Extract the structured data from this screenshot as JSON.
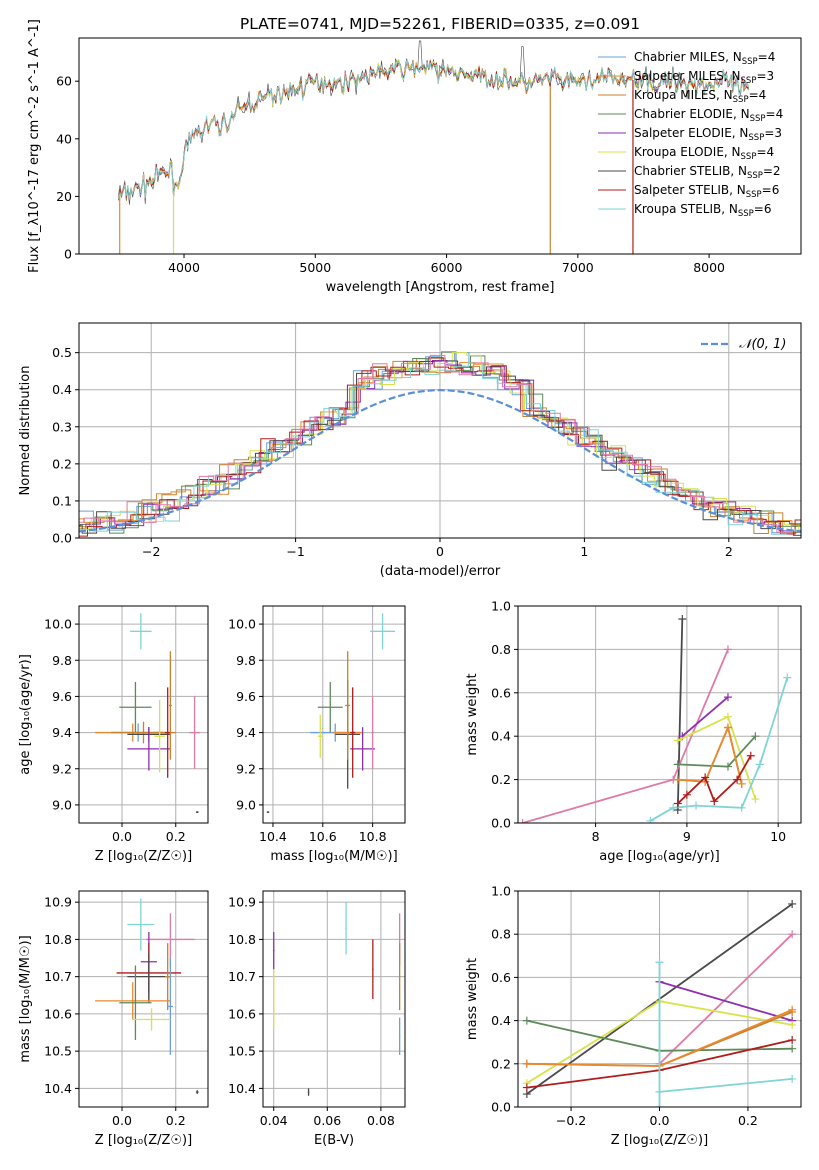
{
  "figure": {
    "title": "PLATE=0741, MJD=52261, FIBERID=0335, z=0.091"
  },
  "colors": {
    "Chabrier MILES": "#6aa0e0",
    "Salpeter MILES": "#e9882e",
    "Kroupa MILES": "#c8822f",
    "Chabrier ELODIE": "#5e8a5a",
    "Salpeter ELODIE": "#8e2fb0",
    "Kroupa ELODIE": "#d8e24a",
    "Chabrier STELIB": "#4a4a4a",
    "Salpeter STELIB": "#b01c1c",
    "Kroupa STELIB": "#7fd4d6",
    "gaussian": "#5b8fd6",
    "pink": "#e07aa8"
  },
  "chart_data": [
    {
      "id": "spectrum",
      "type": "line",
      "title": "PLATE=0741, MJD=52261, FIBERID=0335, z=0.091",
      "xlabel": "wavelength [Angstrom, rest frame]",
      "ylabel": "Flux [f_λ10^-17 erg cm^-2 s^-1 A^-1]",
      "xlim": [
        3200,
        8700
      ],
      "ylim": [
        0,
        75
      ],
      "xticks": [
        "4000",
        "5000",
        "6000",
        "7000",
        "8000"
      ],
      "yticks": [
        "0",
        "20",
        "40",
        "60"
      ],
      "grid": false,
      "legend_position": "top-right",
      "legend": [
        {
          "label": "Chabrier MILES, N",
          "sub": "SSP",
          "tail": "=4"
        },
        {
          "label": "Salpeter MILES, N",
          "sub": "SSP",
          "tail": "=3"
        },
        {
          "label": "Kroupa MILES, N",
          "sub": "SSP",
          "tail": "=4"
        },
        {
          "label": "Chabrier ELODIE, N",
          "sub": "SSP",
          "tail": "=4"
        },
        {
          "label": "Salpeter ELODIE, N",
          "sub": "SSP",
          "tail": "=3"
        },
        {
          "label": "Kroupa ELODIE, N",
          "sub": "SSP",
          "tail": "=4"
        },
        {
          "label": "Chabrier STELIB, N",
          "sub": "SSP",
          "tail": "=2"
        },
        {
          "label": "Salpeter STELIB, N",
          "sub": "SSP",
          "tail": "=6"
        },
        {
          "label": "Kroupa STELIB, N",
          "sub": "SSP",
          "tail": "=6"
        }
      ],
      "continuum": [
        [
          3500,
          20
        ],
        [
          3600,
          22
        ],
        [
          3700,
          24
        ],
        [
          3800,
          27
        ],
        [
          3900,
          29
        ],
        [
          3950,
          22
        ],
        [
          4000,
          35
        ],
        [
          4100,
          42
        ],
        [
          4200,
          45
        ],
        [
          4300,
          45
        ],
        [
          4400,
          49
        ],
        [
          4500,
          52
        ],
        [
          4600,
          54
        ],
        [
          4700,
          55
        ],
        [
          4800,
          57
        ],
        [
          4900,
          58
        ],
        [
          5000,
          60
        ],
        [
          5100,
          60
        ],
        [
          5200,
          59
        ],
        [
          5300,
          61
        ],
        [
          5400,
          62
        ],
        [
          5500,
          63
        ],
        [
          5600,
          64
        ],
        [
          5700,
          64
        ],
        [
          5800,
          65
        ],
        [
          5900,
          64
        ],
        [
          6000,
          63
        ],
        [
          6100,
          63
        ],
        [
          6200,
          62
        ],
        [
          6300,
          61
        ],
        [
          6400,
          61
        ],
        [
          6500,
          60
        ],
        [
          6600,
          59
        ],
        [
          6700,
          60
        ],
        [
          6800,
          61
        ],
        [
          6900,
          60
        ],
        [
          7000,
          60
        ],
        [
          7100,
          60
        ],
        [
          7200,
          61
        ],
        [
          7300,
          61
        ],
        [
          7400,
          60
        ],
        [
          7500,
          62
        ],
        [
          7600,
          58
        ],
        [
          7700,
          60
        ],
        [
          7800,
          60
        ],
        [
          7900,
          59
        ],
        [
          8000,
          59
        ],
        [
          8100,
          60
        ],
        [
          8200,
          58
        ],
        [
          8300,
          57
        ]
      ]
    },
    {
      "id": "residual-histogram",
      "type": "line",
      "xlabel": "(data-model)/error",
      "ylabel": "Normed distribution",
      "xlim": [
        -2.5,
        2.5
      ],
      "ylim": [
        0,
        0.58
      ],
      "xticks": [
        "−2",
        "−1",
        "0",
        "1",
        "2"
      ],
      "yticks": [
        "0.0",
        "0.1",
        "0.2",
        "0.3",
        "0.4",
        "0.5"
      ],
      "grid": true,
      "legend_position": "top-right",
      "legend": [
        "𝒩(0, 1)"
      ],
      "gaussian": {
        "mean": 0,
        "sigma": 1
      }
    },
    {
      "id": "age-vs-Z",
      "type": "scatter",
      "xlabel": "Z [log₁₀(Z/Z☉)]",
      "ylabel": "age  [log₁₀(age/yr)]",
      "xlim": [
        -0.16,
        0.32
      ],
      "ylim": [
        8.9,
        10.1
      ],
      "xticks": [
        "0.0",
        "0.2"
      ],
      "yticks": [
        "9.0",
        "9.2",
        "9.4",
        "9.6",
        "9.8",
        "10.0"
      ],
      "grid": true,
      "points": [
        {
          "series": "Kroupa STELIB",
          "x": 0.07,
          "y": 9.96,
          "xerr": 0.04,
          "yerr": 0.1
        },
        {
          "series": "Chabrier ELODIE",
          "x": 0.05,
          "y": 9.54,
          "xerr": 0.06,
          "yerr": 0.14
        },
        {
          "series": "Salpeter MILES",
          "x": 0.04,
          "y": 9.4,
          "xerr": 0.14,
          "yerr": 0.05
        },
        {
          "series": "Chabrier MILES",
          "x": 0.06,
          "y": 9.4,
          "xerr": 0.1,
          "yerr": 0.05
        },
        {
          "series": "Kroupa MILES",
          "x": 0.08,
          "y": 9.4,
          "xerr": 0.12,
          "yerr": 0.06
        },
        {
          "series": "Chabrier STELIB",
          "x": 0.1,
          "y": 9.39,
          "xerr": 0.08,
          "yerr": 0.04
        },
        {
          "series": "Salpeter ELODIE",
          "x": 0.1,
          "y": 9.31,
          "xerr": 0.08,
          "yerr": 0.12
        },
        {
          "series": "Kroupa ELODIE",
          "x": 0.14,
          "y": 9.38,
          "xerr": 0.02,
          "yerr": 0.2
        },
        {
          "series": "Salpeter STELIB",
          "x": 0.17,
          "y": 9.4,
          "xerr": 0.01,
          "yerr": 0.25
        },
        {
          "series": "Kroupa MILES",
          "x": 0.18,
          "y": 9.55,
          "xerr": 0.005,
          "yerr": 0.3
        },
        {
          "series": "pink",
          "x": 0.27,
          "y": 9.4,
          "xerr": 0.02,
          "yerr": 0.2
        },
        {
          "series": "Chabrier STELIB",
          "x": 0.28,
          "y": 8.96,
          "xerr": 0.005,
          "yerr": 0.005
        }
      ]
    },
    {
      "id": "age-vs-mass",
      "type": "scatter",
      "xlabel": "mass [log₁₀(M/M☉)]",
      "ylabel": "",
      "xlim": [
        10.36,
        10.93
      ],
      "ylim": [
        8.9,
        10.1
      ],
      "xticks": [
        "10.4",
        "10.6",
        "10.8"
      ],
      "yticks": [
        "9.0",
        "9.2",
        "9.4",
        "9.6",
        "9.8",
        "10.0"
      ],
      "grid": true,
      "points": [
        {
          "series": "Kroupa STELIB",
          "x": 10.84,
          "y": 9.96,
          "xerr": 0.05,
          "yerr": 0.1
        },
        {
          "series": "Chabrier ELODIE",
          "x": 10.63,
          "y": 9.54,
          "xerr": 0.05,
          "yerr": 0.14
        },
        {
          "series": "Chabrier MILES",
          "x": 10.65,
          "y": 9.4,
          "xerr": 0.1,
          "yerr": 0.05
        },
        {
          "series": "Salpeter MILES",
          "x": 10.7,
          "y": 9.4,
          "xerr": 0.06,
          "yerr": 0.06
        },
        {
          "series": "Chabrier STELIB",
          "x": 10.7,
          "y": 9.39,
          "xerr": 0.05,
          "yerr": 0.3
        },
        {
          "series": "Kroupa MILES",
          "x": 10.7,
          "y": 9.55,
          "xerr": 0.01,
          "yerr": 0.3
        },
        {
          "series": "Salpeter ELODIE",
          "x": 10.76,
          "y": 9.31,
          "xerr": 0.05,
          "yerr": 0.12
        },
        {
          "series": "Kroupa ELODIE",
          "x": 10.59,
          "y": 9.38,
          "xerr": 0.01,
          "yerr": 0.12
        },
        {
          "series": "Salpeter STELIB",
          "x": 10.72,
          "y": 9.4,
          "xerr": 0.01,
          "yerr": 0.25
        },
        {
          "series": "pink",
          "x": 10.8,
          "y": 9.4,
          "xerr": 0.005,
          "yerr": 0.2
        },
        {
          "series": "Chabrier STELIB",
          "x": 10.38,
          "y": 8.96,
          "xerr": 0.005,
          "yerr": 0.005
        }
      ]
    },
    {
      "id": "weight-vs-age",
      "type": "line",
      "xlabel": "age  [log₁₀(age/yr)]",
      "ylabel": "mass weight",
      "xlim": [
        7.15,
        10.25
      ],
      "ylim": [
        0,
        1
      ],
      "xticks": [
        "8",
        "9",
        "10"
      ],
      "yticks": [
        "0.0",
        "0.2",
        "0.4",
        "0.6",
        "0.8",
        "1.0"
      ],
      "grid": true,
      "series": [
        {
          "name": "Chabrier STELIB",
          "x": [
            8.9,
            8.95
          ],
          "y": [
            0.06,
            0.94
          ]
        },
        {
          "name": "pink",
          "x": [
            7.2,
            8.85,
            9.45
          ],
          "y": [
            0.0,
            0.2,
            0.8
          ]
        },
        {
          "name": "Salpeter ELODIE",
          "x": [
            8.95,
            9.45
          ],
          "y": [
            0.4,
            0.58
          ]
        },
        {
          "name": "Kroupa ELODIE",
          "x": [
            8.9,
            9.45,
            9.75
          ],
          "y": [
            0.38,
            0.49,
            0.11
          ]
        },
        {
          "name": "Kroupa STELIB",
          "x": [
            8.6,
            8.85,
            9.1,
            9.6,
            9.8,
            10.1
          ],
          "y": [
            0.01,
            0.07,
            0.08,
            0.07,
            0.27,
            0.67
          ]
        },
        {
          "name": "Chabrier ELODIE",
          "x": [
            8.9,
            9.45,
            9.75
          ],
          "y": [
            0.27,
            0.26,
            0.4
          ]
        },
        {
          "name": "Kroupa MILES",
          "x": [
            8.9,
            9.2,
            9.45,
            9.6
          ],
          "y": [
            0.2,
            0.19,
            0.44,
            0.18
          ]
        },
        {
          "name": "Salpeter MILES",
          "x": [
            8.9,
            9.2,
            9.45,
            9.6
          ],
          "y": [
            0.2,
            0.19,
            0.44,
            0.18
          ]
        },
        {
          "name": "Salpeter STELIB",
          "x": [
            8.9,
            9.0,
            9.2,
            9.3,
            9.55,
            9.7
          ],
          "y": [
            0.09,
            0.13,
            0.21,
            0.1,
            0.2,
            0.31
          ]
        }
      ]
    },
    {
      "id": "mass-vs-Z",
      "type": "scatter",
      "xlabel": "Z [log₁₀(Z/Z☉)]",
      "ylabel": "mass [log₁₀(M/M☉)]",
      "xlim": [
        -0.16,
        0.32
      ],
      "ylim": [
        10.35,
        10.93
      ],
      "xticks": [
        "0.0",
        "0.2"
      ],
      "yticks": [
        "10.4",
        "10.5",
        "10.6",
        "10.7",
        "10.8",
        "10.9"
      ],
      "grid": true,
      "points": [
        {
          "series": "Kroupa STELIB",
          "x": 0.07,
          "y": 10.84,
          "xerr": 0.05,
          "yerr": 0.07
        },
        {
          "series": "pink",
          "x": 0.18,
          "y": 10.8,
          "xerr": 0.09,
          "yerr": 0.07
        },
        {
          "series": "Salpeter ELODIE",
          "x": 0.1,
          "y": 10.74,
          "xerr": 0.03,
          "yerr": 0.08
        },
        {
          "series": "Salpeter STELIB",
          "x": 0.1,
          "y": 10.71,
          "xerr": 0.12,
          "yerr": 0.08
        },
        {
          "series": "Chabrier STELIB",
          "x": 0.1,
          "y": 10.7,
          "xerr": 0.08,
          "yerr": 0.06
        },
        {
          "series": "Kroupa MILES",
          "x": 0.17,
          "y": 10.7,
          "xerr": 0.01,
          "yerr": 0.09
        },
        {
          "series": "Salpeter MILES",
          "x": 0.04,
          "y": 10.635,
          "xerr": 0.14,
          "yerr": 0.05
        },
        {
          "series": "Chabrier ELODIE",
          "x": 0.05,
          "y": 10.63,
          "xerr": 0.06,
          "yerr": 0.1
        },
        {
          "series": "Chabrier MILES",
          "x": 0.18,
          "y": 10.62,
          "xerr": 0.01,
          "yerr": 0.13
        },
        {
          "series": "Kroupa ELODIE",
          "x": 0.11,
          "y": 10.585,
          "xerr": 0.07,
          "yerr": 0.03
        },
        {
          "series": "Chabrier STELIB",
          "x": 0.28,
          "y": 10.39,
          "xerr": 0.005,
          "yerr": 0.005
        }
      ]
    },
    {
      "id": "mass-vs-ebv",
      "type": "scatter",
      "xlabel": "E(B-V)",
      "ylabel": "",
      "xlim": [
        0.036,
        0.089
      ],
      "ylim": [
        10.35,
        10.93
      ],
      "xticks": [
        "0.04",
        "0.06",
        "0.08"
      ],
      "yticks": [
        "10.4",
        "10.5",
        "10.6",
        "10.7",
        "10.8",
        "10.9"
      ],
      "grid": true,
      "points": [
        {
          "series": "Kroupa STELIB",
          "x": 0.067,
          "y": 10.83,
          "xerr": 0,
          "yerr": 0.07
        },
        {
          "series": "Salpeter ELODIE",
          "x": 0.04,
          "y": 10.77,
          "xerr": 0,
          "yerr": 0.05
        },
        {
          "series": "Salpeter STELIB",
          "x": 0.077,
          "y": 10.72,
          "xerr": 0,
          "yerr": 0.08
        },
        {
          "series": "pink",
          "x": 0.087,
          "y": 10.8,
          "xerr": 0,
          "yerr": 0.07
        },
        {
          "series": "Kroupa MILES",
          "x": 0.087,
          "y": 10.7,
          "xerr": 0,
          "yerr": 0.09
        },
        {
          "series": "Kroupa ELODIE",
          "x": 0.04,
          "y": 10.64,
          "xerr": 0,
          "yerr": 0.08
        },
        {
          "series": "Chabrier MILES",
          "x": 0.087,
          "y": 10.54,
          "xerr": 0,
          "yerr": 0.05
        },
        {
          "series": "Chabrier STELIB",
          "x": 0.053,
          "y": 10.39,
          "xerr": 0,
          "yerr": 0.01
        }
      ]
    },
    {
      "id": "weight-vs-Z",
      "type": "line",
      "xlabel": "Z [log₁₀(Z/Z☉)]",
      "ylabel": "mass weight",
      "xlim": [
        -0.32,
        0.32
      ],
      "ylim": [
        0,
        1
      ],
      "xticks": [
        "−0.2",
        "0.0",
        "0.2"
      ],
      "yticks": [
        "0.0",
        "0.2",
        "0.4",
        "0.6",
        "0.8",
        "1.0"
      ],
      "grid": true,
      "series": [
        {
          "name": "Chabrier STELIB",
          "x": [
            -0.3,
            0.3
          ],
          "y": [
            0.06,
            0.94
          ]
        },
        {
          "name": "pink",
          "x": [
            0.0,
            0.3
          ],
          "y": [
            0.2,
            0.8
          ]
        },
        {
          "name": "Salpeter ELODIE",
          "x": [
            0.0,
            0.3
          ],
          "y": [
            0.58,
            0.4
          ]
        },
        {
          "name": "Kroupa ELODIE",
          "x": [
            -0.3,
            0.0,
            0.3
          ],
          "y": [
            0.11,
            0.49,
            0.38
          ]
        },
        {
          "name": "Chabrier ELODIE",
          "x": [
            -0.3,
            0.0,
            0.3
          ],
          "y": [
            0.4,
            0.26,
            0.27
          ]
        },
        {
          "name": "Kroupa MILES",
          "x": [
            -0.3,
            0.0,
            0.3
          ],
          "y": [
            0.2,
            0.19,
            0.44
          ]
        },
        {
          "name": "Salpeter MILES",
          "x": [
            -0.3,
            0.0,
            0.3
          ],
          "y": [
            0.2,
            0.19,
            0.45
          ]
        },
        {
          "name": "Salpeter STELIB",
          "x": [
            -0.3,
            0.0,
            0.3
          ],
          "y": [
            0.09,
            0.17,
            0.31
          ]
        },
        {
          "name": "Kroupa STELIB",
          "x": [
            0.0,
            0.3
          ],
          "y": [
            0.07,
            0.13
          ]
        },
        {
          "name": "Kroupa STELIB",
          "x": [
            0.0,
            0.0
          ],
          "y": [
            0.0,
            0.67
          ]
        }
      ]
    }
  ]
}
